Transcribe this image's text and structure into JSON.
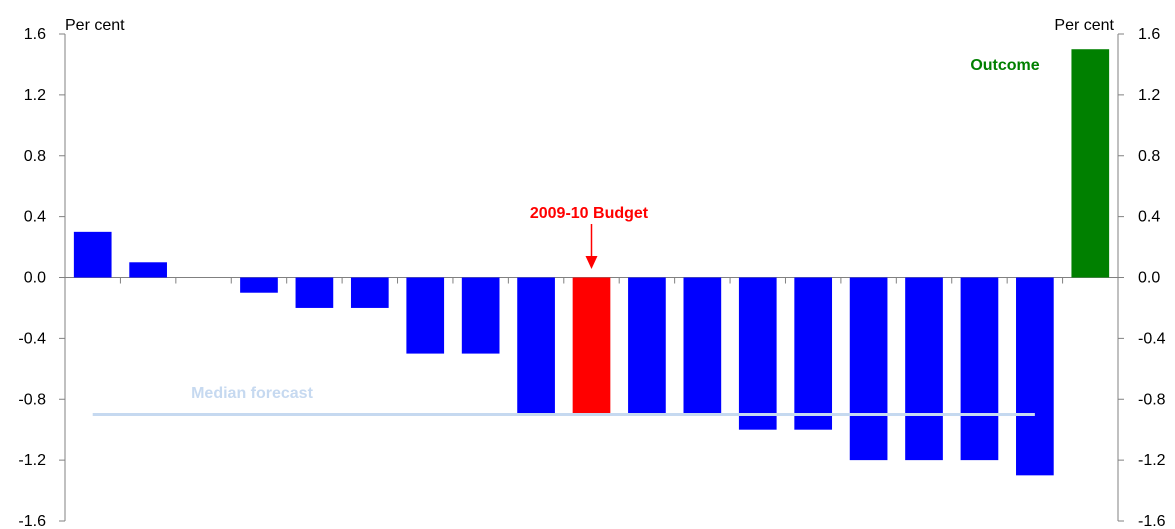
{
  "chart_data": {
    "type": "bar",
    "title": "",
    "xlabel": "",
    "ylabel": "",
    "y_unit_left": "Per cent",
    "y_unit_right": "Per cent",
    "ylim": [
      -1.6,
      1.6
    ],
    "yticks": [
      "1.6",
      "1.2",
      "0.8",
      "0.4",
      "0.0",
      "-0.4",
      "-0.8",
      "-1.2",
      "-1.6"
    ],
    "grid": false,
    "colors": {
      "forecast": "#0000ff",
      "budget": "#ff0000",
      "outcome": "#008000",
      "median": "#c6d9f0",
      "budget_label": "#ff0000",
      "outcome_label": "#008000",
      "median_label": "#c6d9f0"
    },
    "values": [
      0.3,
      0.1,
      0.0,
      -0.1,
      -0.2,
      -0.2,
      -0.5,
      -0.5,
      -0.9,
      -0.9,
      -0.9,
      -0.9,
      -1.0,
      -1.0,
      -1.2,
      -1.2,
      -1.2,
      -1.3,
      1.5
    ],
    "kinds": [
      "forecast",
      "forecast",
      "forecast",
      "forecast",
      "forecast",
      "forecast",
      "forecast",
      "forecast",
      "forecast",
      "budget",
      "forecast",
      "forecast",
      "forecast",
      "forecast",
      "forecast",
      "forecast",
      "forecast",
      "forecast",
      "outcome"
    ],
    "median_value": -0.9,
    "annotations": {
      "budget": "2009-10 Budget",
      "outcome": "Outcome",
      "median": "Median forecast"
    }
  }
}
